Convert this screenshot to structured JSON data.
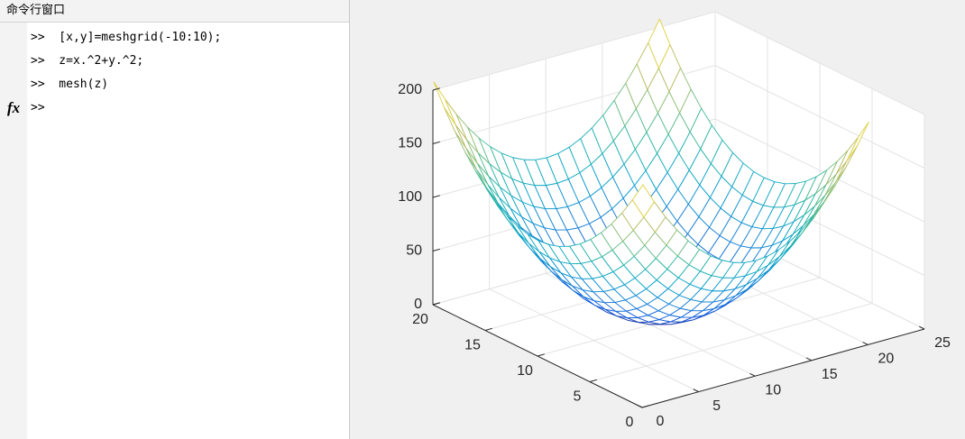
{
  "command_window": {
    "title": "命令行窗口",
    "lines": [
      ">>  [x,y]=meshgrid(-10:10);",
      ">>  z=x.^2+y.^2;",
      ">>  mesh(z)"
    ],
    "fx": "fx",
    "prompt": ">>"
  },
  "chart_data": {
    "type": "mesh",
    "x": [
      1,
      2,
      3,
      4,
      5,
      6,
      7,
      8,
      9,
      10,
      11,
      12,
      13,
      14,
      15,
      16,
      17,
      18,
      19,
      20,
      21
    ],
    "y": [
      1,
      2,
      3,
      4,
      5,
      6,
      7,
      8,
      9,
      10,
      11,
      12,
      13,
      14,
      15,
      16,
      17,
      18,
      19,
      20,
      21
    ],
    "z": [
      [
        200,
        181,
        164,
        149,
        136,
        125,
        116,
        109,
        104,
        101,
        100,
        101,
        104,
        109,
        116,
        125,
        136,
        149,
        164,
        181,
        200
      ],
      [
        181,
        162,
        145,
        130,
        117,
        106,
        97,
        90,
        85,
        82,
        81,
        82,
        85,
        90,
        97,
        106,
        117,
        130,
        145,
        162,
        181
      ],
      [
        164,
        145,
        128,
        113,
        100,
        89,
        80,
        73,
        68,
        65,
        64,
        65,
        68,
        73,
        80,
        89,
        100,
        113,
        128,
        145,
        164
      ],
      [
        149,
        130,
        113,
        98,
        85,
        74,
        65,
        58,
        53,
        50,
        49,
        50,
        53,
        58,
        65,
        74,
        85,
        98,
        113,
        130,
        149
      ],
      [
        136,
        117,
        100,
        85,
        72,
        61,
        52,
        45,
        40,
        37,
        36,
        37,
        40,
        45,
        52,
        61,
        72,
        85,
        100,
        117,
        136
      ],
      [
        125,
        106,
        89,
        74,
        61,
        50,
        41,
        34,
        29,
        26,
        25,
        26,
        29,
        34,
        41,
        50,
        61,
        74,
        89,
        106,
        125
      ],
      [
        116,
        97,
        80,
        65,
        52,
        41,
        32,
        25,
        20,
        17,
        16,
        17,
        20,
        25,
        32,
        41,
        52,
        65,
        80,
        97,
        116
      ],
      [
        109,
        90,
        73,
        58,
        45,
        34,
        25,
        18,
        13,
        10,
        9,
        10,
        13,
        18,
        25,
        34,
        45,
        58,
        73,
        90,
        109
      ],
      [
        104,
        85,
        68,
        53,
        40,
        29,
        20,
        13,
        8,
        5,
        4,
        5,
        8,
        13,
        20,
        29,
        40,
        53,
        68,
        85,
        104
      ],
      [
        101,
        82,
        65,
        50,
        37,
        26,
        17,
        10,
        5,
        2,
        1,
        2,
        5,
        10,
        17,
        26,
        37,
        50,
        65,
        82,
        101
      ],
      [
        100,
        81,
        64,
        49,
        36,
        25,
        16,
        9,
        4,
        1,
        0,
        1,
        4,
        9,
        16,
        25,
        36,
        49,
        64,
        81,
        100
      ],
      [
        101,
        82,
        65,
        50,
        37,
        26,
        17,
        10,
        5,
        2,
        1,
        2,
        5,
        10,
        17,
        26,
        37,
        50,
        65,
        82,
        101
      ],
      [
        104,
        85,
        68,
        53,
        40,
        29,
        20,
        13,
        8,
        5,
        4,
        5,
        8,
        13,
        20,
        29,
        40,
        53,
        68,
        85,
        104
      ],
      [
        109,
        90,
        73,
        58,
        45,
        34,
        25,
        18,
        13,
        10,
        9,
        10,
        13,
        18,
        25,
        34,
        45,
        58,
        73,
        90,
        109
      ],
      [
        116,
        97,
        80,
        65,
        52,
        41,
        32,
        25,
        20,
        17,
        16,
        17,
        20,
        25,
        32,
        41,
        52,
        65,
        80,
        97,
        116
      ],
      [
        125,
        106,
        89,
        74,
        61,
        50,
        41,
        34,
        29,
        26,
        25,
        26,
        29,
        34,
        41,
        50,
        61,
        74,
        89,
        106,
        125
      ],
      [
        136,
        117,
        100,
        85,
        72,
        61,
        52,
        45,
        40,
        37,
        36,
        37,
        40,
        45,
        52,
        61,
        72,
        85,
        100,
        117,
        136
      ],
      [
        149,
        130,
        113,
        98,
        85,
        74,
        65,
        58,
        53,
        50,
        49,
        50,
        53,
        58,
        65,
        74,
        85,
        98,
        113,
        130,
        149
      ],
      [
        164,
        145,
        128,
        113,
        100,
        89,
        80,
        73,
        68,
        65,
        64,
        65,
        68,
        73,
        80,
        89,
        100,
        113,
        128,
        145,
        164
      ],
      [
        181,
        162,
        145,
        130,
        117,
        106,
        97,
        90,
        85,
        82,
        81,
        82,
        85,
        90,
        97,
        106,
        117,
        130,
        145,
        162,
        181
      ],
      [
        200,
        181,
        164,
        149,
        136,
        125,
        116,
        109,
        104,
        101,
        100,
        101,
        104,
        109,
        116,
        125,
        136,
        149,
        164,
        181,
        200
      ]
    ],
    "xlim": [
      0,
      25
    ],
    "ylim": [
      0,
      20
    ],
    "zlim": [
      0,
      200
    ],
    "xticks": [
      0,
      5,
      10,
      15,
      20,
      25
    ],
    "yticks": [
      0,
      5,
      10,
      15,
      20
    ],
    "zticks": [
      0,
      50,
      100,
      150,
      200
    ],
    "grid": true,
    "colormap": [
      "#352a87",
      "#0f5cdd",
      "#1481d6",
      "#06a4ca",
      "#2eb7a4",
      "#87bf77",
      "#d1bb59",
      "#f9fb0e"
    ]
  }
}
